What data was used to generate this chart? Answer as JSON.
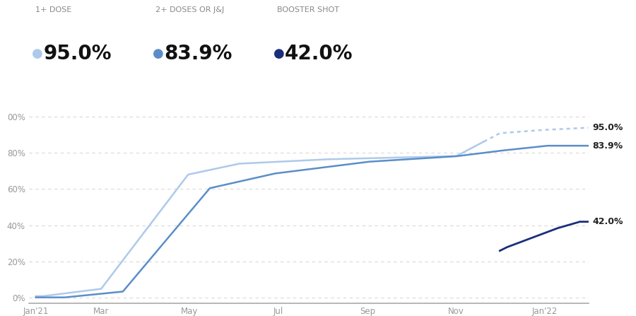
{
  "background_color": "#ffffff",
  "legend_labels": [
    "1+ DOSE",
    "2+ DOSES OR J&J",
    "BOOSTER SHOT"
  ],
  "legend_values": [
    "95.0%",
    "83.9%",
    "42.0%"
  ],
  "colors": {
    "dose1": "#aec9eb",
    "dose2": "#5b8ec9",
    "booster": "#1a2e7a"
  },
  "grid_color": "#cccccc",
  "tick_color": "#999999",
  "annotation_color": "#222222",
  "annotation_fontsize": 9,
  "legend_label_fontsize": 8,
  "legend_value_fontsize": 20
}
